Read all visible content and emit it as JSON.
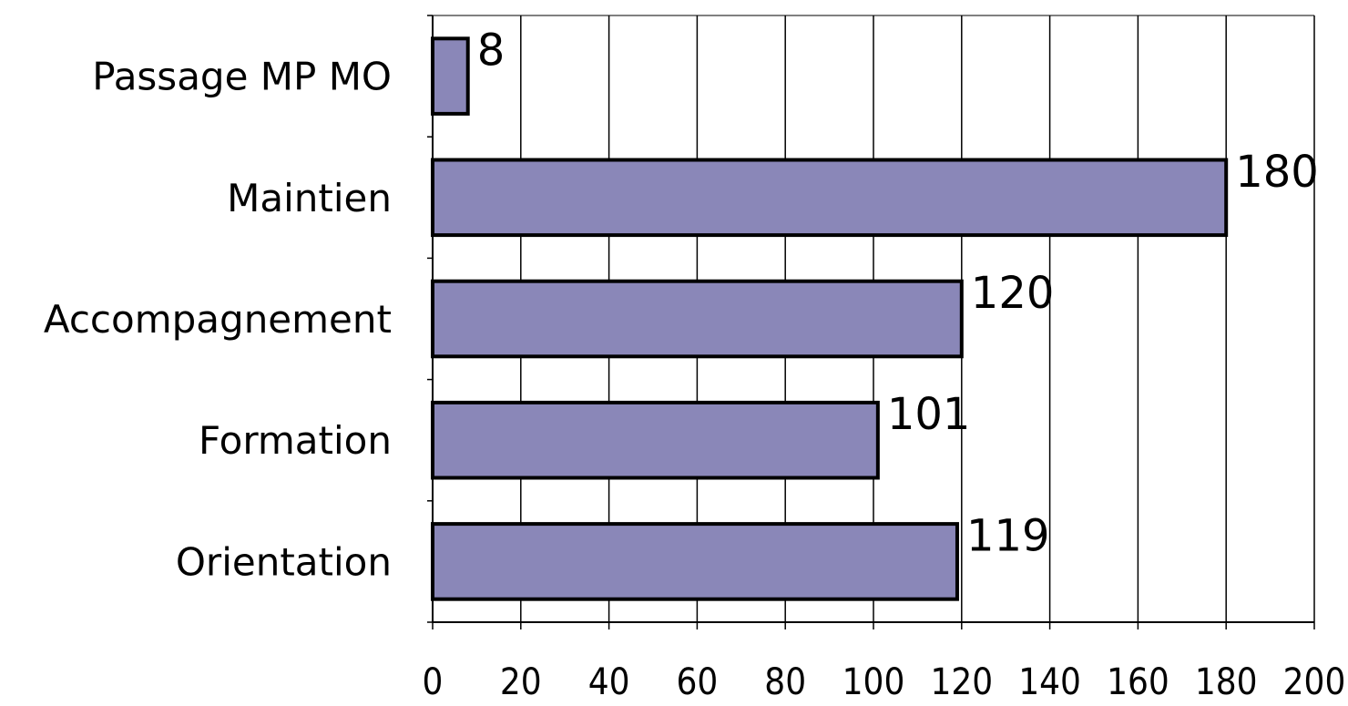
{
  "chart_data": {
    "type": "bar",
    "orientation": "horizontal",
    "categories": [
      "Passage MP MO",
      "Maintien",
      "Accompagnement",
      "Formation",
      "Orientation"
    ],
    "values": [
      8,
      180,
      120,
      101,
      119
    ],
    "data_labels": [
      "8",
      "180",
      "120",
      "101",
      "119"
    ],
    "x_ticks": [
      "0",
      "20",
      "40",
      "60",
      "80",
      "100",
      "120",
      "140",
      "160",
      "180",
      "200"
    ],
    "xlim": [
      0,
      200
    ],
    "title": "",
    "xlabel": "",
    "ylabel": "",
    "grid": "vertical",
    "legend": "none",
    "bar_color": "#8a87b8",
    "bar_edge_color": "#000000"
  }
}
